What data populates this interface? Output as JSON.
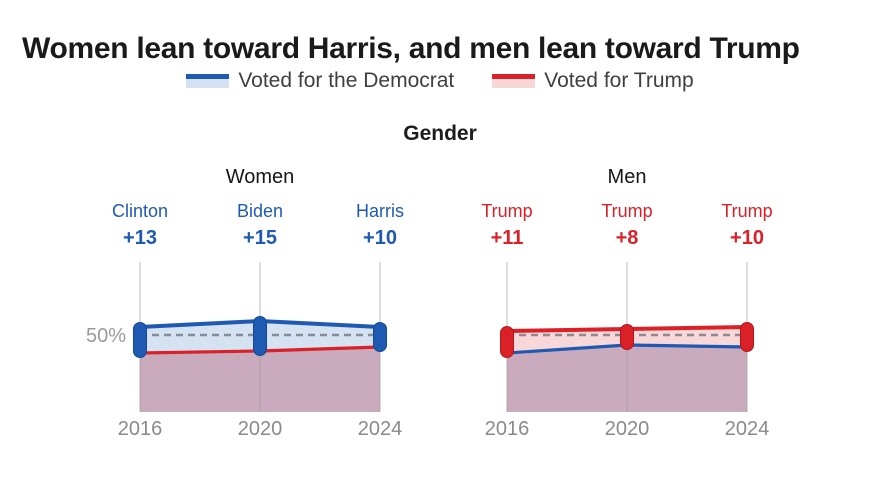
{
  "title": "Women lean toward Harris, and men lean toward Trump",
  "section_title": "Gender",
  "legend": {
    "items": [
      {
        "label": "Voted for the Democrat",
        "color_key": "democrat"
      },
      {
        "label": "Voted for Trump",
        "color_key": "trump"
      }
    ]
  },
  "axis": {
    "reference_label": "50%",
    "reference_value": 50
  },
  "colors": {
    "democrat": "#1e5ab2",
    "democrat_dark": "#174a96",
    "democrat_fill": "#d4e2f2",
    "trump": "#da2127",
    "trump_dark": "#b0181e",
    "trump_fill": "#f8d7d9",
    "overlap": "#c9abbd",
    "reference": "#4c5560",
    "gridline": "#9c9c9c",
    "axis_text": "#8a8a8a",
    "title_text": "#1a1a1a"
  },
  "chart_data": [
    {
      "type": "area",
      "title": "Women",
      "x": [
        "2016",
        "2020",
        "2024"
      ],
      "reference_line": 50,
      "ylim": [
        11.5,
        86.5
      ],
      "point_labels": [
        {
          "name": "Clinton",
          "margin": "+13"
        },
        {
          "name": "Biden",
          "margin": "+15"
        },
        {
          "name": "Harris",
          "margin": "+10"
        }
      ],
      "series": [
        {
          "name": "Voted for the Democrat",
          "color_key": "democrat",
          "values": [
            54,
            57,
            54
          ]
        },
        {
          "name": "Voted for Trump",
          "color_key": "trump",
          "values": [
            41,
            42,
            44
          ]
        }
      ]
    },
    {
      "type": "area",
      "title": "Men",
      "x": [
        "2016",
        "2020",
        "2024"
      ],
      "reference_line": 50,
      "ylim": [
        11.5,
        86.5
      ],
      "point_labels": [
        {
          "name": "Trump",
          "margin": "+11"
        },
        {
          "name": "Trump",
          "margin": "+8"
        },
        {
          "name": "Trump",
          "margin": "+10"
        }
      ],
      "series": [
        {
          "name": "Voted for Trump",
          "color_key": "trump",
          "values": [
            52,
            53,
            54
          ]
        },
        {
          "name": "Voted for the Democrat",
          "color_key": "democrat",
          "values": [
            41,
            45,
            44
          ]
        }
      ]
    }
  ]
}
